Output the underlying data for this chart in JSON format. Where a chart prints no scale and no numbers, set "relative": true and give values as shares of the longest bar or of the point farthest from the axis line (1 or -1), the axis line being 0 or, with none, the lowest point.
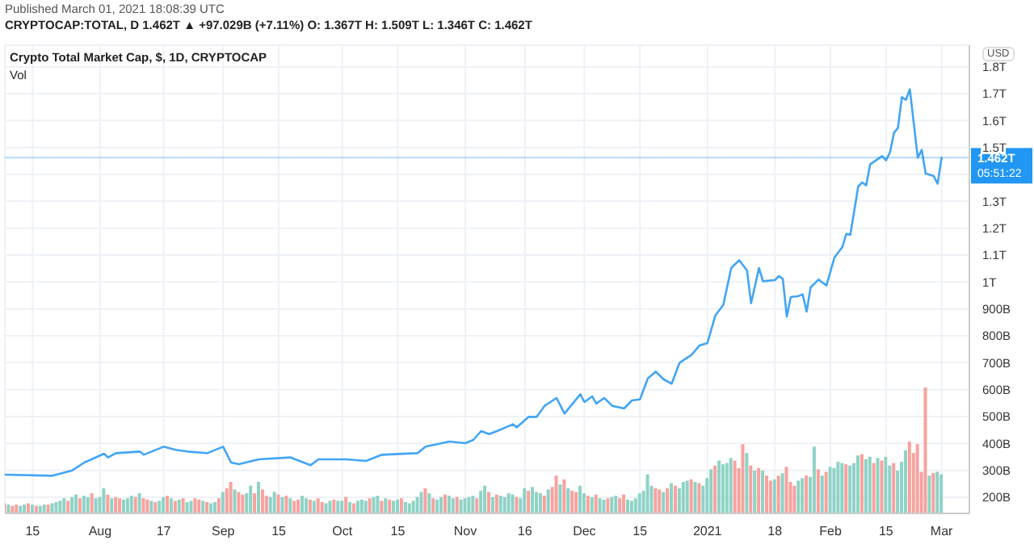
{
  "chart_data": [
    {
      "type": "line",
      "title": "Crypto Total Market Cap, $, 1D, CRYPTOCAP",
      "annotations": [
        "Published March 01, 2021 18:08:39 UTC",
        "CRYPTOCAP:TOTAL, D  1.462T ▲ +97.029B (+7.11%) O: 1.367T H: 1.509T L: 1.346T C: 1.462T",
        "USD",
        "05:51:22"
      ],
      "x": [
        "2020-07-08",
        "2020-07-20",
        "2020-07-25",
        "2020-07-28",
        "2020-08-02",
        "2020-08-03",
        "2020-08-05",
        "2020-08-11",
        "2020-08-12",
        "2020-08-17",
        "2020-08-20",
        "2020-08-23",
        "2020-08-28",
        "2020-09-01",
        "2020-09-03",
        "2020-09-05",
        "2020-09-10",
        "2020-09-18",
        "2020-09-23",
        "2020-09-25",
        "2020-10-02",
        "2020-10-07",
        "2020-10-11",
        "2020-10-20",
        "2020-10-22",
        "2020-10-28",
        "2020-11-01",
        "2020-11-03",
        "2020-11-05",
        "2020-11-07",
        "2020-11-09",
        "2020-11-13",
        "2020-11-14",
        "2020-11-17",
        "2020-11-19",
        "2020-11-21",
        "2020-11-24",
        "2020-11-26",
        "2020-11-30",
        "2020-12-01",
        "2020-12-03",
        "2020-12-04",
        "2020-12-06",
        "2020-12-08",
        "2020-12-11",
        "2020-12-13",
        "2020-12-15",
        "2020-12-17",
        "2020-12-19",
        "2020-12-21",
        "2020-12-23",
        "2020-12-25",
        "2020-12-28",
        "2020-12-30",
        "2021-01-01",
        "2021-01-03",
        "2021-01-05",
        "2021-01-07",
        "2021-01-09",
        "2021-01-11",
        "2021-01-12",
        "2021-01-14",
        "2021-01-15",
        "2021-01-18",
        "2021-01-19",
        "2021-01-20",
        "2021-01-21",
        "2021-01-22",
        "2021-01-24",
        "2021-01-25",
        "2021-01-26",
        "2021-01-27",
        "2021-01-29",
        "2021-01-31",
        "2021-02-02",
        "2021-02-04",
        "2021-02-05",
        "2021-02-06",
        "2021-02-08",
        "2021-02-09",
        "2021-02-10",
        "2021-02-11",
        "2021-02-14",
        "2021-02-15",
        "2021-02-16",
        "2021-02-17",
        "2021-02-18",
        "2021-02-19",
        "2021-02-20",
        "2021-02-21",
        "2021-02-23",
        "2021-02-24",
        "2021-02-25",
        "2021-02-27",
        "2021-02-28",
        "2021-03-01"
      ],
      "series": [
        {
          "color": "#42a5f5",
          "values": [
            284000000000,
            280000000000,
            300000000000,
            329000000000,
            362000000000,
            348000000000,
            364000000000,
            370000000000,
            358000000000,
            388000000000,
            376000000000,
            370000000000,
            364000000000,
            388000000000,
            329000000000,
            323000000000,
            341000000000,
            348000000000,
            319000000000,
            341000000000,
            341000000000,
            335000000000,
            358000000000,
            364000000000,
            388000000000,
            407000000000,
            401000000000,
            413000000000,
            446000000000,
            435000000000,
            446000000000,
            471000000000,
            460000000000,
            499000000000,
            499000000000,
            540000000000,
            569000000000,
            511000000000,
            583000000000,
            554000000000,
            575000000000,
            548000000000,
            569000000000,
            540000000000,
            530000000000,
            560000000000,
            564000000000,
            642000000000,
            667000000000,
            638000000000,
            622000000000,
            700000000000,
            729000000000,
            764000000000,
            773000000000,
            876000000000,
            915000000000,
            1052000000000,
            1081000000000,
            1042000000000,
            921000000000,
            1052000000000,
            1003000000000,
            1007000000000,
            1022000000000,
            1012000000000,
            872000000000,
            944000000000,
            948000000000,
            954000000000,
            890000000000,
            980000000000,
            1009000000000,
            987000000000,
            1091000000000,
            1130000000000,
            1179000000000,
            1175000000000,
            1355000000000,
            1370000000000,
            1359000000000,
            1437000000000,
            1468000000000,
            1452000000000,
            1482000000000,
            1554000000000,
            1573000000000,
            1687000000000,
            1677000000000,
            1716000000000,
            1462000000000,
            1491000000000,
            1403000000000,
            1394000000000,
            1365000000000,
            1462000000000
          ]
        }
      ],
      "xlim": [
        "2020-07-08",
        "2021-03-08"
      ],
      "xticks": [
        {
          "value": "2020-07-15",
          "label": null
        },
        {
          "value": "2020-08-01",
          "label": null
        },
        {
          "value": "2020-08-17",
          "label": null
        },
        {
          "value": "2020-09-01",
          "label": null
        },
        {
          "value": "2020-09-15",
          "label": null
        },
        {
          "value": "2020-10-01",
          "label": null
        },
        {
          "value": "2020-10-15",
          "label": null
        },
        {
          "value": "2020-11-01",
          "label": null
        },
        {
          "value": "2020-11-16",
          "label": null
        },
        {
          "value": "2020-12-01",
          "label": null
        },
        {
          "value": "2020-12-15",
          "label": null
        },
        {
          "value": "2021-01-01",
          "label": null
        },
        {
          "value": "2021-01-18",
          "label": null
        },
        {
          "value": "2021-02-01",
          "label": null
        },
        {
          "value": "2021-02-15",
          "label": null
        },
        {
          "value": "2021-03-01",
          "label": null
        }
      ],
      "ylim": [
        140000000000,
        1880000000000
      ],
      "yticks": [
        {
          "value": 200000000000,
          "label": "200B"
        },
        {
          "value": 300000000000,
          "label": "300B"
        },
        {
          "value": 400000000000,
          "label": "400B"
        },
        {
          "value": 500000000000,
          "label": "500B"
        },
        {
          "value": 600000000000,
          "label": "600B"
        },
        {
          "value": 700000000000,
          "label": "700B"
        },
        {
          "value": 800000000000,
          "label": "800B"
        },
        {
          "value": 900000000000,
          "label": "900B"
        },
        {
          "value": 1000000000000,
          "label": "1T"
        },
        {
          "value": 1100000000000,
          "label": "1.1T"
        },
        {
          "value": 1200000000000,
          "label": "1.2T"
        },
        {
          "value": 1300000000000,
          "label": "1.3T"
        },
        {
          "value": 1400000000000,
          "label": null
        },
        {
          "value": 1500000000000,
          "label": "1.5T"
        },
        {
          "value": 1600000000000,
          "label": "1.6T"
        },
        {
          "value": 1700000000000,
          "label": "1.7T"
        },
        {
          "value": 1800000000000,
          "label": "1.8T"
        }
      ],
      "ref_lines": [
        {
          "axis": "y",
          "value": 1462000000000,
          "label": "1.462T",
          "color": "#2196f3"
        }
      ],
      "grid": true,
      "marker": "none",
      "line_style": "solid",
      "tick_labels": "y"
    },
    {
      "type": "bar",
      "title": "Vol",
      "relative": true,
      "tick_labels": "x",
      "xlim": [
        "2020-07-08",
        "2021-03-08"
      ],
      "xticks": [
        {
          "value": "2020-07-15",
          "label": "15"
        },
        {
          "value": "2020-08-01",
          "label": "Aug"
        },
        {
          "value": "2020-08-17",
          "label": "17"
        },
        {
          "value": "2020-09-01",
          "label": "Sep"
        },
        {
          "value": "2020-09-15",
          "label": "15"
        },
        {
          "value": "2020-10-01",
          "label": "Oct"
        },
        {
          "value": "2020-10-15",
          "label": "15"
        },
        {
          "value": "2020-11-01",
          "label": "Nov"
        },
        {
          "value": "2020-11-16",
          "label": "16"
        },
        {
          "value": "2020-12-01",
          "label": "Dec"
        },
        {
          "value": "2020-12-15",
          "label": "15"
        },
        {
          "value": "2021-01-01",
          "label": "2021"
        },
        {
          "value": "2021-01-18",
          "label": "18"
        },
        {
          "value": "2021-02-01",
          "label": "Feb"
        },
        {
          "value": "2021-02-15",
          "label": "15"
        },
        {
          "value": "2021-03-01",
          "label": "Mar"
        }
      ],
      "x": [
        "2020-07-08",
        "2020-07-09",
        "2020-07-10",
        "2020-07-11",
        "2020-07-12",
        "2020-07-13",
        "2020-07-14",
        "2020-07-15",
        "2020-07-16",
        "2020-07-17",
        "2020-07-18",
        "2020-07-19",
        "2020-07-20",
        "2020-07-21",
        "2020-07-22",
        "2020-07-23",
        "2020-07-24",
        "2020-07-25",
        "2020-07-26",
        "2020-07-27",
        "2020-07-28",
        "2020-07-29",
        "2020-07-30",
        "2020-07-31",
        "2020-08-01",
        "2020-08-02",
        "2020-08-03",
        "2020-08-04",
        "2020-08-05",
        "2020-08-06",
        "2020-08-07",
        "2020-08-08",
        "2020-08-09",
        "2020-08-10",
        "2020-08-11",
        "2020-08-12",
        "2020-08-13",
        "2020-08-14",
        "2020-08-15",
        "2020-08-16",
        "2020-08-17",
        "2020-08-18",
        "2020-08-19",
        "2020-08-20",
        "2020-08-21",
        "2020-08-22",
        "2020-08-23",
        "2020-08-24",
        "2020-08-25",
        "2020-08-26",
        "2020-08-27",
        "2020-08-28",
        "2020-08-29",
        "2020-08-30",
        "2020-08-31",
        "2020-09-01",
        "2020-09-02",
        "2020-09-03",
        "2020-09-04",
        "2020-09-05",
        "2020-09-06",
        "2020-09-07",
        "2020-09-08",
        "2020-09-09",
        "2020-09-10",
        "2020-09-11",
        "2020-09-12",
        "2020-09-13",
        "2020-09-14",
        "2020-09-15",
        "2020-09-16",
        "2020-09-17",
        "2020-09-18",
        "2020-09-19",
        "2020-09-20",
        "2020-09-21",
        "2020-09-22",
        "2020-09-23",
        "2020-09-24",
        "2020-09-25",
        "2020-09-26",
        "2020-09-27",
        "2020-09-28",
        "2020-09-29",
        "2020-09-30",
        "2020-10-01",
        "2020-10-02",
        "2020-10-03",
        "2020-10-04",
        "2020-10-05",
        "2020-10-06",
        "2020-10-07",
        "2020-10-08",
        "2020-10-09",
        "2020-10-10",
        "2020-10-11",
        "2020-10-12",
        "2020-10-13",
        "2020-10-14",
        "2020-10-15",
        "2020-10-16",
        "2020-10-17",
        "2020-10-18",
        "2020-10-19",
        "2020-10-20",
        "2020-10-21",
        "2020-10-22",
        "2020-10-23",
        "2020-10-24",
        "2020-10-25",
        "2020-10-26",
        "2020-10-27",
        "2020-10-28",
        "2020-10-29",
        "2020-10-30",
        "2020-10-31",
        "2020-11-01",
        "2020-11-02",
        "2020-11-03",
        "2020-11-04",
        "2020-11-05",
        "2020-11-06",
        "2020-11-07",
        "2020-11-08",
        "2020-11-09",
        "2020-11-10",
        "2020-11-11",
        "2020-11-12",
        "2020-11-13",
        "2020-11-14",
        "2020-11-15",
        "2020-11-16",
        "2020-11-17",
        "2020-11-18",
        "2020-11-19",
        "2020-11-20",
        "2020-11-21",
        "2020-11-22",
        "2020-11-23",
        "2020-11-24",
        "2020-11-25",
        "2020-11-26",
        "2020-11-27",
        "2020-11-28",
        "2020-11-29",
        "2020-11-30",
        "2020-12-01",
        "2020-12-02",
        "2020-12-03",
        "2020-12-04",
        "2020-12-05",
        "2020-12-06",
        "2020-12-07",
        "2020-12-08",
        "2020-12-09",
        "2020-12-10",
        "2020-12-11",
        "2020-12-12",
        "2020-12-13",
        "2020-12-14",
        "2020-12-15",
        "2020-12-16",
        "2020-12-17",
        "2020-12-18",
        "2020-12-19",
        "2020-12-20",
        "2020-12-21",
        "2020-12-22",
        "2020-12-23",
        "2020-12-24",
        "2020-12-25",
        "2020-12-26",
        "2020-12-27",
        "2020-12-28",
        "2020-12-29",
        "2020-12-30",
        "2020-12-31",
        "2021-01-01",
        "2021-01-02",
        "2021-01-03",
        "2021-01-04",
        "2021-01-05",
        "2021-01-06",
        "2021-01-07",
        "2021-01-08",
        "2021-01-09",
        "2021-01-10",
        "2021-01-11",
        "2021-01-12",
        "2021-01-13",
        "2021-01-14",
        "2021-01-15",
        "2021-01-16",
        "2021-01-17",
        "2021-01-18",
        "2021-01-19",
        "2021-01-20",
        "2021-01-21",
        "2021-01-22",
        "2021-01-23",
        "2021-01-24",
        "2021-01-25",
        "2021-01-26",
        "2021-01-27",
        "2021-01-28",
        "2021-01-29",
        "2021-01-30",
        "2021-01-31",
        "2021-02-01",
        "2021-02-02",
        "2021-02-03",
        "2021-02-04",
        "2021-02-05",
        "2021-02-06",
        "2021-02-07",
        "2021-02-08",
        "2021-02-09",
        "2021-02-10",
        "2021-02-11",
        "2021-02-12",
        "2021-02-13",
        "2021-02-14",
        "2021-02-15",
        "2021-02-16",
        "2021-02-17",
        "2021-02-18",
        "2021-02-19",
        "2021-02-20",
        "2021-02-21",
        "2021-02-22",
        "2021-02-23",
        "2021-02-24",
        "2021-02-25",
        "2021-02-26",
        "2021-02-27",
        "2021-02-28",
        "2021-03-01"
      ],
      "values": [
        0.08,
        0.07,
        0.06,
        0.07,
        0.06,
        0.07,
        0.08,
        0.07,
        0.06,
        0.06,
        0.07,
        0.07,
        0.08,
        0.09,
        0.1,
        0.12,
        0.1,
        0.13,
        0.15,
        0.12,
        0.14,
        0.13,
        0.16,
        0.12,
        0.13,
        0.2,
        0.15,
        0.12,
        0.13,
        0.12,
        0.11,
        0.12,
        0.14,
        0.13,
        0.16,
        0.12,
        0.11,
        0.1,
        0.09,
        0.1,
        0.13,
        0.14,
        0.12,
        0.1,
        0.11,
        0.12,
        0.09,
        0.1,
        0.12,
        0.11,
        0.1,
        0.09,
        0.08,
        0.09,
        0.12,
        0.17,
        0.2,
        0.25,
        0.19,
        0.17,
        0.15,
        0.16,
        0.22,
        0.16,
        0.25,
        0.19,
        0.14,
        0.13,
        0.17,
        0.15,
        0.13,
        0.14,
        0.12,
        0.1,
        0.11,
        0.14,
        0.12,
        0.11,
        0.1,
        0.12,
        0.09,
        0.08,
        0.1,
        0.11,
        0.1,
        0.1,
        0.13,
        0.09,
        0.08,
        0.1,
        0.11,
        0.1,
        0.12,
        0.13,
        0.14,
        0.1,
        0.12,
        0.11,
        0.1,
        0.11,
        0.12,
        0.09,
        0.08,
        0.1,
        0.13,
        0.17,
        0.2,
        0.16,
        0.12,
        0.11,
        0.13,
        0.15,
        0.14,
        0.12,
        0.13,
        0.11,
        0.12,
        0.13,
        0.14,
        0.12,
        0.18,
        0.22,
        0.17,
        0.13,
        0.15,
        0.14,
        0.13,
        0.16,
        0.15,
        0.13,
        0.12,
        0.2,
        0.18,
        0.21,
        0.17,
        0.16,
        0.14,
        0.19,
        0.21,
        0.3,
        0.23,
        0.27,
        0.2,
        0.18,
        0.17,
        0.22,
        0.16,
        0.14,
        0.13,
        0.15,
        0.12,
        0.11,
        0.12,
        0.13,
        0.14,
        0.12,
        0.15,
        0.11,
        0.1,
        0.12,
        0.16,
        0.18,
        0.31,
        0.22,
        0.2,
        0.19,
        0.17,
        0.2,
        0.24,
        0.22,
        0.2,
        0.25,
        0.26,
        0.27,
        0.25,
        0.24,
        0.22,
        0.28,
        0.35,
        0.38,
        0.42,
        0.39,
        0.4,
        0.44,
        0.42,
        0.36,
        0.55,
        0.48,
        0.38,
        0.34,
        0.36,
        0.34,
        0.3,
        0.26,
        0.27,
        0.3,
        0.32,
        0.37,
        0.25,
        0.22,
        0.26,
        0.28,
        0.3,
        0.29,
        0.53,
        0.35,
        0.3,
        0.33,
        0.37,
        0.36,
        0.41,
        0.4,
        0.39,
        0.38,
        0.4,
        0.46,
        0.47,
        0.43,
        0.45,
        0.4,
        0.44,
        0.42,
        0.45,
        0.38,
        0.4,
        0.34,
        0.41,
        0.5,
        0.57,
        0.48,
        0.55,
        0.33,
        1.0,
        0.3,
        0.32,
        0.33,
        0.31
      ],
      "colors": [
        "#f7a29e",
        "#8fd2c6",
        "#f7a29e",
        "#f7a29e",
        "#8fd2c6",
        "#8fd2c6",
        "#f7a29e",
        "#8fd2c6",
        "#f7a29e",
        "#8fd2c6",
        "#8fd2c6",
        "#f7a29e",
        "#8fd2c6",
        "#8fd2c6",
        "#8fd2c6",
        "#8fd2c6",
        "#f7a29e",
        "#8fd2c6",
        "#8fd2c6",
        "#f7a29e",
        "#8fd2c6",
        "#8fd2c6",
        "#f7a29e",
        "#8fd2c6",
        "#8fd2c6",
        "#8fd2c6",
        "#f7a29e",
        "#8fd2c6",
        "#f7a29e",
        "#f7a29e",
        "#8fd2c6",
        "#8fd2c6",
        "#8fd2c6",
        "#f7a29e",
        "#8fd2c6",
        "#f7a29e",
        "#f7a29e",
        "#8fd2c6",
        "#f7a29e",
        "#8fd2c6",
        "#8fd2c6",
        "#f7a29e",
        "#8fd2c6",
        "#f7a29e",
        "#8fd2c6",
        "#f7a29e",
        "#8fd2c6",
        "#8fd2c6",
        "#f7a29e",
        "#f7a29e",
        "#8fd2c6",
        "#f7a29e",
        "#8fd2c6",
        "#8fd2c6",
        "#f7a29e",
        "#8fd2c6",
        "#f7a29e",
        "#f7a29e",
        "#8fd2c6",
        "#f7a29e",
        "#f7a29e",
        "#8fd2c6",
        "#8fd2c6",
        "#f7a29e",
        "#8fd2c6",
        "#f7a29e",
        "#f7a29e",
        "#8fd2c6",
        "#8fd2c6",
        "#f7a29e",
        "#8fd2c6",
        "#f7a29e",
        "#8fd2c6",
        "#f7a29e",
        "#f7a29e",
        "#8fd2c6",
        "#8fd2c6",
        "#f7a29e",
        "#8fd2c6",
        "#f7a29e",
        "#f7a29e",
        "#8fd2c6",
        "#8fd2c6",
        "#f7a29e",
        "#8fd2c6",
        "#8fd2c6",
        "#f7a29e",
        "#8fd2c6",
        "#f7a29e",
        "#8fd2c6",
        "#8fd2c6",
        "#8fd2c6",
        "#f7a29e",
        "#8fd2c6",
        "#8fd2c6",
        "#f7a29e",
        "#8fd2c6",
        "#f7a29e",
        "#8fd2c6",
        "#8fd2c6",
        "#f7a29e",
        "#8fd2c6",
        "#8fd2c6",
        "#8fd2c6",
        "#8fd2c6",
        "#8fd2c6",
        "#f7a29e",
        "#8fd2c6",
        "#f7a29e",
        "#8fd2c6",
        "#8fd2c6",
        "#f7a29e",
        "#8fd2c6",
        "#8fd2c6",
        "#f7a29e",
        "#8fd2c6",
        "#8fd2c6",
        "#8fd2c6",
        "#8fd2c6",
        "#f7a29e",
        "#8fd2c6",
        "#8fd2c6",
        "#f7a29e",
        "#8fd2c6",
        "#f7a29e",
        "#8fd2c6",
        "#8fd2c6",
        "#8fd2c6",
        "#8fd2c6",
        "#f7a29e",
        "#8fd2c6",
        "#8fd2c6",
        "#f7a29e",
        "#8fd2c6",
        "#8fd2c6",
        "#8fd2c6",
        "#f7a29e",
        "#8fd2c6",
        "#f7a29e",
        "#f7a29e",
        "#8fd2c6",
        "#f7a29e",
        "#8fd2c6",
        "#f7a29e",
        "#f7a29e",
        "#8fd2c6",
        "#8fd2c6",
        "#f7a29e",
        "#8fd2c6",
        "#f7a29e",
        "#8fd2c6",
        "#8fd2c6",
        "#f7a29e",
        "#8fd2c6",
        "#8fd2c6",
        "#f7a29e",
        "#f7a29e",
        "#8fd2c6",
        "#8fd2c6",
        "#8fd2c6",
        "#8fd2c6",
        "#8fd2c6",
        "#8fd2c6",
        "#8fd2c6",
        "#f7a29e",
        "#f7a29e",
        "#8fd2c6",
        "#f7a29e",
        "#8fd2c6",
        "#f7a29e",
        "#8fd2c6",
        "#8fd2c6",
        "#8fd2c6",
        "#f7a29e",
        "#8fd2c6",
        "#f7a29e",
        "#8fd2c6",
        "#8fd2c6",
        "#8fd2c6",
        "#f7a29e",
        "#8fd2c6",
        "#8fd2c6",
        "#8fd2c6",
        "#8fd2c6",
        "#f7a29e",
        "#f7a29e",
        "#f7a29e",
        "#8fd2c6",
        "#f7a29e",
        "#8fd2c6",
        "#f7a29e",
        "#8fd2c6",
        "#f7a29e",
        "#f7a29e",
        "#8fd2c6",
        "#f7a29e",
        "#8fd2c6",
        "#f7a29e",
        "#f7a29e",
        "#f7a29e",
        "#8fd2c6",
        "#8fd2c6",
        "#f7a29e",
        "#8fd2c6",
        "#8fd2c6",
        "#f7a29e",
        "#8fd2c6",
        "#f7a29e",
        "#8fd2c6",
        "#8fd2c6",
        "#8fd2c6",
        "#8fd2c6",
        "#f7a29e",
        "#8fd2c6",
        "#8fd2c6",
        "#8fd2c6",
        "#f7a29e",
        "#8fd2c6",
        "#8fd2c6",
        "#f7a29e",
        "#8fd2c6",
        "#f7a29e",
        "#8fd2c6",
        "#8fd2c6",
        "#f7a29e",
        "#8fd2c6",
        "#8fd2c6",
        "#8fd2c6",
        "#f7a29e",
        "#f7a29e",
        "#f7a29e",
        "#f7a29e",
        "#f7a29e",
        "#8fd2c6",
        "#f7a29e",
        "#8fd2c6",
        "#8fd2c6"
      ]
    }
  ]
}
